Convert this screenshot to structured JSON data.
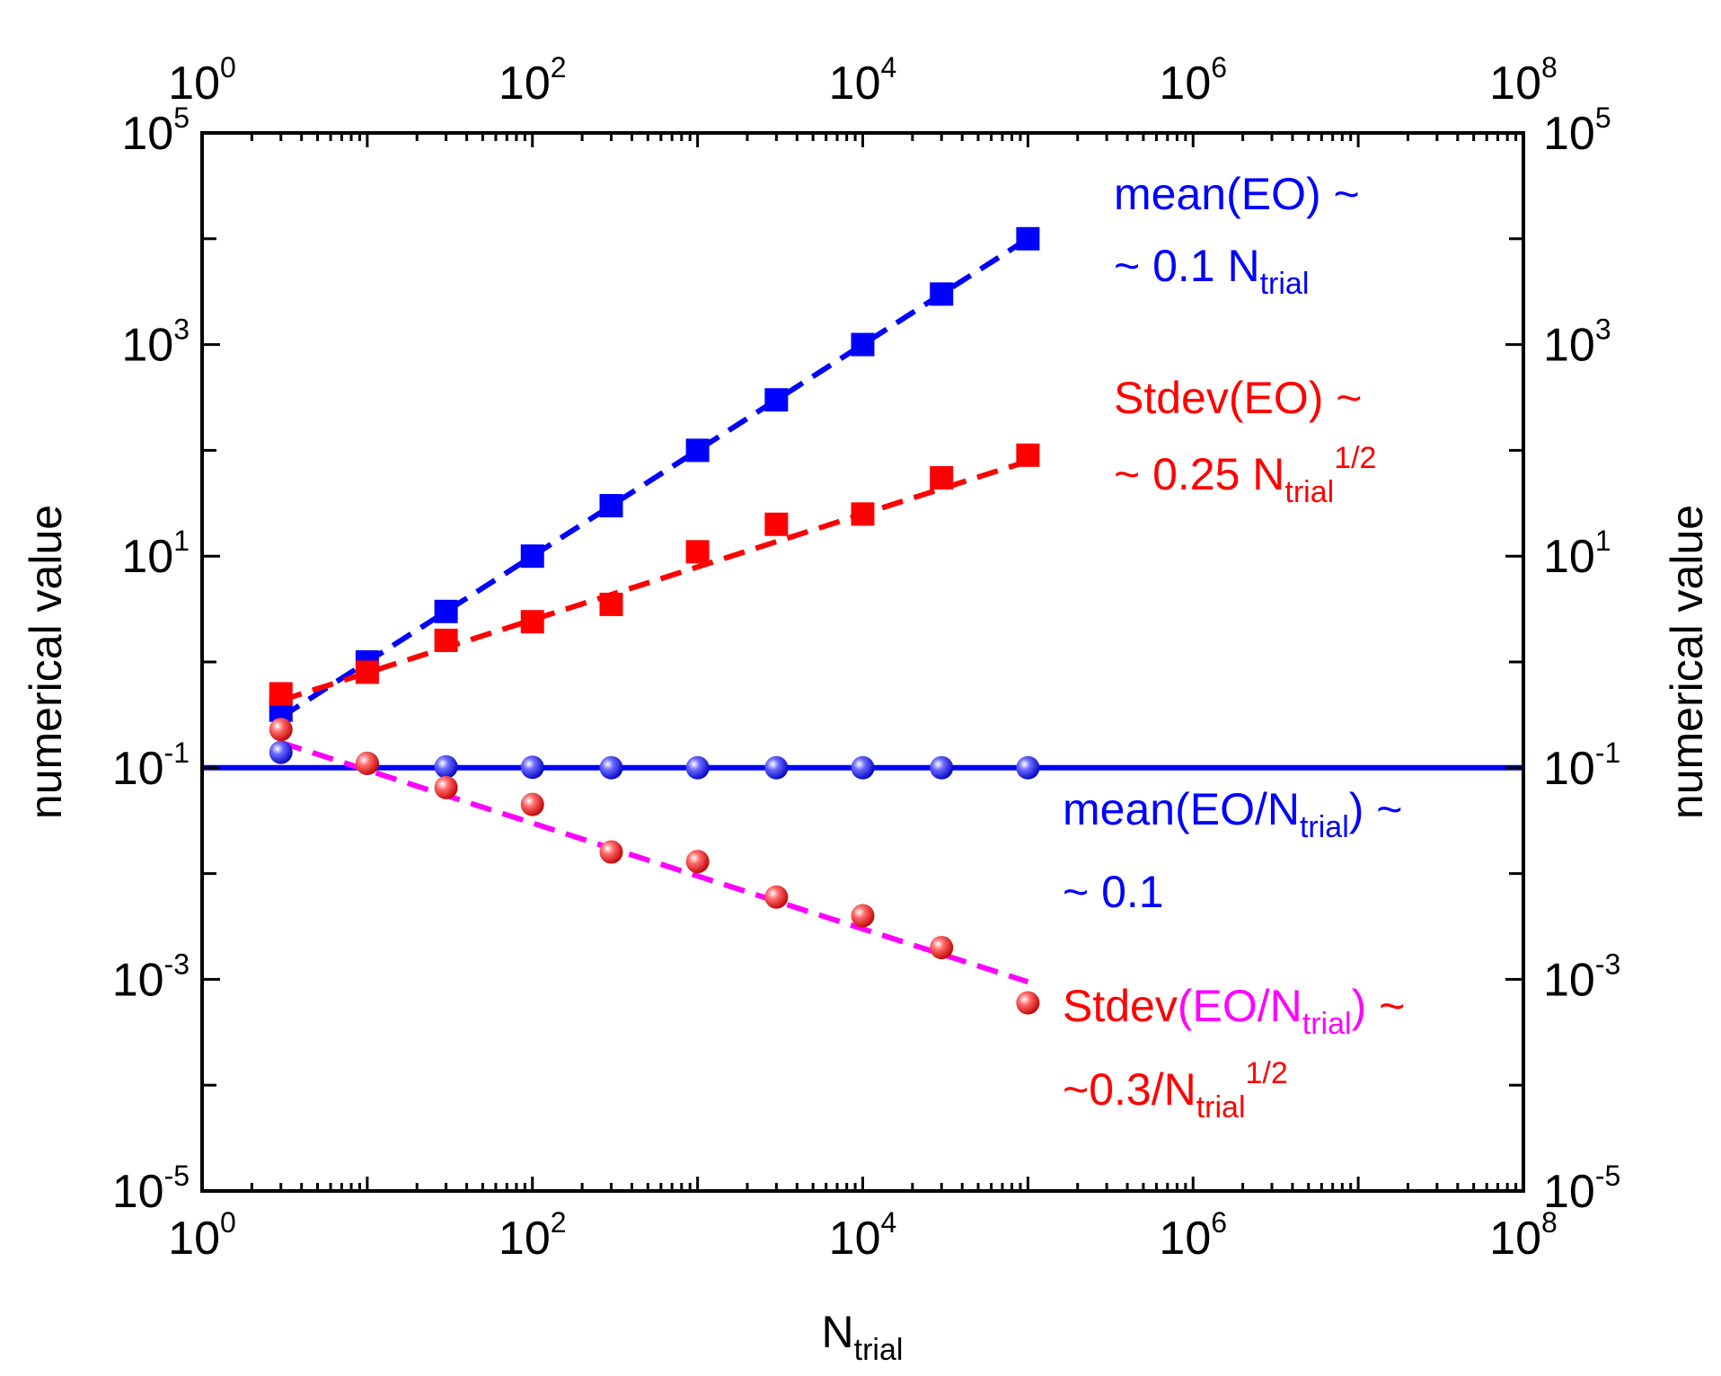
{
  "chart_data": {
    "type": "scatter",
    "title": "",
    "xlabel": {
      "main": "N",
      "sub": "trial"
    },
    "ylabel": "numerical value",
    "xscale": "log",
    "yscale": "log",
    "xlim": [
      1,
      100000000
    ],
    "ylim": [
      1e-05,
      100000
    ],
    "grid": false,
    "x_ticks": [
      {
        "value": 1,
        "base": "10",
        "exp": "0"
      },
      {
        "value": 100,
        "base": "10",
        "exp": "2"
      },
      {
        "value": 10000,
        "base": "10",
        "exp": "4"
      },
      {
        "value": 1000000,
        "base": "10",
        "exp": "6"
      },
      {
        "value": 100000000,
        "base": "10",
        "exp": "8"
      }
    ],
    "y_ticks": [
      {
        "value": 1e-05,
        "base": "10",
        "exp": "-5"
      },
      {
        "value": 0.001,
        "base": "10",
        "exp": "-3"
      },
      {
        "value": 0.1,
        "base": "10",
        "exp": "-1"
      },
      {
        "value": 10,
        "base": "10",
        "exp": "1"
      },
      {
        "value": 1000,
        "base": "10",
        "exp": "3"
      },
      {
        "value": 100000,
        "base": "10",
        "exp": "5"
      }
    ],
    "x": [
      3,
      10,
      30,
      100,
      300,
      1000,
      3000,
      10000,
      30000,
      100000
    ],
    "series": [
      {
        "name": "mean(EO)",
        "marker": "square",
        "color": "#0000ff",
        "values": [
          0.35,
          1.0,
          3.0,
          10.0,
          30.0,
          100.0,
          300.0,
          1000.0,
          3000.0,
          10000.0
        ],
        "fit": {
          "style": "dashed",
          "color": "#0000ff",
          "formula": "0.1*N",
          "coef": 0.1,
          "power": 1,
          "x_range": [
            3,
            100000
          ]
        }
      },
      {
        "name": "Stdev(EO)",
        "marker": "square",
        "color": "#ff0000",
        "values": [
          0.5,
          0.8,
          1.6,
          2.4,
          3.5,
          11.0,
          20.0,
          25.0,
          55.0,
          90.0
        ],
        "fit": {
          "style": "dashed",
          "color": "#ff0000",
          "formula": "0.25*N^0.5",
          "coef": 0.25,
          "power": 0.5,
          "x_range": [
            3,
            100000
          ]
        }
      },
      {
        "name": "mean(EO/Ntrial)",
        "marker": "sphere",
        "color": "#0000ff",
        "values": [
          0.14,
          0.11,
          0.102,
          0.101,
          0.1,
          0.1,
          0.1,
          0.1,
          0.1,
          0.1
        ],
        "fit": {
          "style": "solid",
          "color": "#0000ff",
          "formula": "0.1",
          "coef": 0.1,
          "power": 0,
          "x_range": [
            1,
            100000000
          ]
        }
      },
      {
        "name": "Stdev(EO/Ntrial)",
        "marker": "sphere",
        "color": "#ff0000",
        "values": [
          0.23,
          0.11,
          0.065,
          0.045,
          0.016,
          0.013,
          0.006,
          0.004,
          0.002,
          0.0006
        ],
        "fit": {
          "style": "dashed",
          "color": "#ff00ff",
          "formula": "0.3*N^-0.5",
          "coef": 0.3,
          "power": -0.5,
          "x_range": [
            3,
            100000
          ]
        }
      }
    ]
  },
  "annotations": {
    "mean_eo": {
      "line1": "mean(EO) ~",
      "line2_a": "~ 0.1 N",
      "line2_sub": "trial",
      "color": "#0000ff"
    },
    "stdev_eo": {
      "line1": "Stdev(EO) ~",
      "line2_a": "~ 0.25 N",
      "line2_sub": "trial",
      "line2_sup": "1/2",
      "color": "#ff0000"
    },
    "mean_ratio": {
      "line1_a": "mean(EO/N",
      "line1_sub": "trial",
      "line1_b": ") ~",
      "line2": "~ 0.1",
      "color": "#0000ff"
    },
    "stdev_ratio": {
      "line1_a": "Stdev",
      "line1_b": "(EO/N",
      "line1_sub": "trial",
      "line1_c": ")",
      "line1_d": " ~",
      "line2_a": "~0.3/N",
      "line2_sub": "trial",
      "line2_sup": "1/2",
      "color": "#ff0000",
      "color_alt": "#ff00ff"
    }
  }
}
